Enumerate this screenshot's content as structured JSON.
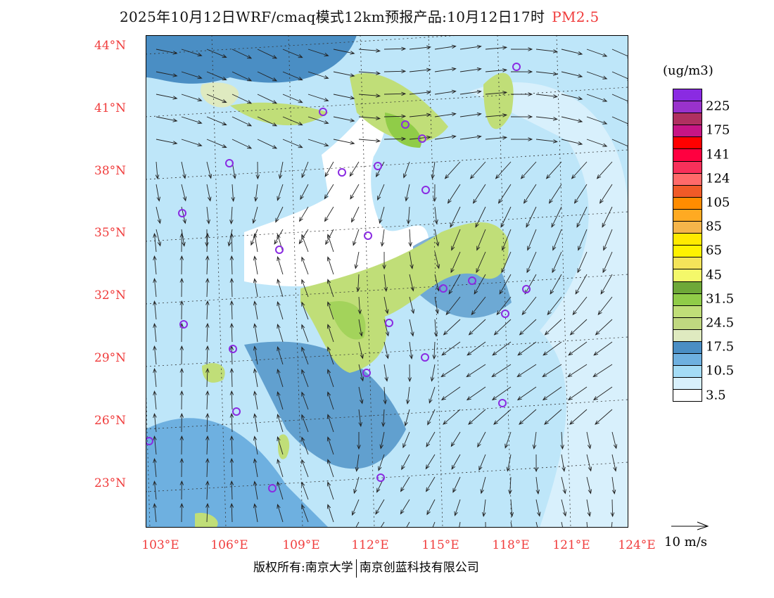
{
  "title": {
    "text": "2025年10月12日WRF/cmaq模式12km预报产品:10月12日17时",
    "variable": "PM2.5"
  },
  "axes": {
    "lat_labels": [
      "44°N",
      "41°N",
      "38°N",
      "35°N",
      "32°N",
      "29°N",
      "26°N",
      "23°N"
    ],
    "lon_labels": [
      "103°E",
      "106°E",
      "109°E",
      "112°E",
      "115°E",
      "118°E",
      "121°E",
      "124°E"
    ]
  },
  "colorbar": {
    "unit": "(ug/m3)",
    "colors": [
      "#8a2be2",
      "#9932cc",
      "#b03060",
      "#c71585",
      "#ff0000",
      "#ff0040",
      "#f8305a",
      "#ff6a6a",
      "#f05a28",
      "#ff8c00",
      "#ffaa22",
      "#f5b54a",
      "#ffea00",
      "#fff200",
      "#f4e45a",
      "#f4f86a",
      "#6ea838",
      "#90cc48",
      "#c0de78",
      "#c0d880",
      "#dfeac0",
      "#4a8ec4",
      "#6eb0e0",
      "#a4dcf6",
      "#d8f0fc",
      "#ffffff"
    ],
    "labels": [
      "225",
      "175",
      "141",
      "124",
      "105",
      "85",
      "65",
      "45",
      "31.5",
      "24.5",
      "17.5",
      "10.5",
      "3.5"
    ]
  },
  "wind_legend": {
    "label": "10 m/s"
  },
  "footer": {
    "copyright": "版权所有:南京大学",
    "company": "南京创蓝科技有限公司"
  }
}
